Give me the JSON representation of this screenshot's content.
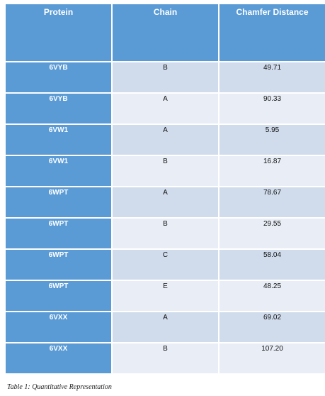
{
  "table": {
    "headers": [
      "Protein",
      "Chain",
      "Chamfer Distance"
    ],
    "rows": [
      {
        "protein": "6VYB",
        "chain": "B",
        "distance": "49.71"
      },
      {
        "protein": "6VYB",
        "chain": "A",
        "distance": "90.33"
      },
      {
        "protein": "6VW1",
        "chain": "A",
        "distance": "5.95"
      },
      {
        "protein": "6VW1",
        "chain": "B",
        "distance": "16.87"
      },
      {
        "protein": "6WPT",
        "chain": "A",
        "distance": "78.67"
      },
      {
        "protein": "6WPT",
        "chain": "B",
        "distance": "29.55"
      },
      {
        "protein": "6WPT",
        "chain": "C",
        "distance": "58.04"
      },
      {
        "protein": "6WPT",
        "chain": "E",
        "distance": "48.25"
      },
      {
        "protein": "6VXX",
        "chain": "A",
        "distance": "69.02"
      },
      {
        "protein": "6VXX",
        "chain": "B",
        "distance": "107.20"
      }
    ]
  },
  "caption": "Table 1: Quantitative Representation",
  "colors": {
    "header_bg": "#5b9bd5",
    "row_odd_bg": "#d0dcec",
    "row_even_bg": "#e8edf6"
  }
}
